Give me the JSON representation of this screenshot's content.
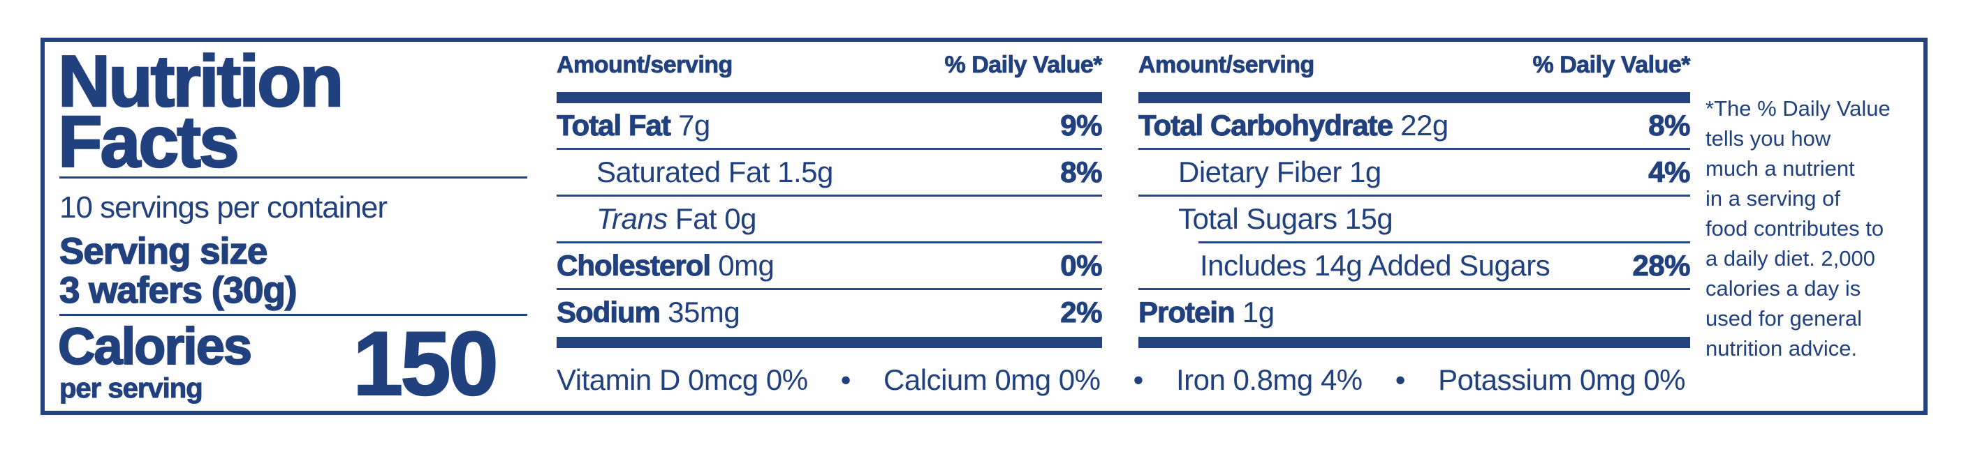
{
  "colors": {
    "navy_text": "#21407e",
    "navy_bar": "#24427e",
    "background": "#ffffff"
  },
  "title": {
    "line1": "Nutrition",
    "line2": "Facts"
  },
  "serving": {
    "servings_per_container": "10 servings per container",
    "serving_size_label": "Serving size",
    "serving_size_value": "3 wafers (30g)"
  },
  "calories": {
    "label": "Calories",
    "sublabel": "per serving",
    "value": "150"
  },
  "columns": [
    {
      "header": {
        "left": "Amount/serving",
        "right": "% Daily Value*"
      },
      "rows": [
        {
          "bold": "Total Fat",
          "italic": "",
          "text": " 7g",
          "dv": "9%"
        },
        {
          "bold": "",
          "italic": "",
          "text": "Saturated Fat 1.5g",
          "dv": "8%"
        },
        {
          "bold": "",
          "italic": "Trans",
          "text": " Fat 0g",
          "dv": ""
        },
        {
          "bold": "Cholesterol",
          "italic": "",
          "text": " 0mg",
          "dv": "0%"
        },
        {
          "bold": "Sodium",
          "italic": "",
          "text": " 35mg",
          "dv": "2%"
        }
      ]
    },
    {
      "header": {
        "left": "Amount/serving",
        "right": "% Daily Value*"
      },
      "rows": [
        {
          "bold": "Total Carbohydrate",
          "italic": "",
          "text": " 22g",
          "dv": "8%"
        },
        {
          "bold": "",
          "italic": "",
          "text": "Dietary Fiber 1g",
          "dv": "4%"
        },
        {
          "bold": "",
          "italic": "",
          "text": "Total Sugars 15g",
          "dv": ""
        },
        {
          "bold": "",
          "italic": "",
          "text": "Includes 14g Added Sugars",
          "dv": "28%"
        },
        {
          "bold": "Protein",
          "italic": "",
          "text": " 1g",
          "dv": ""
        }
      ]
    }
  ],
  "micronutrients": {
    "items": [
      "Vitamin D 0mcg 0%",
      "Calcium 0mg 0%",
      "Iron 0.8mg 4%",
      "Potassium 0mg 0%"
    ],
    "separator": "•"
  },
  "footnote": {
    "lines": [
      "*The % Daily Value",
      "tells you how",
      "much a nutrient",
      "in a serving of",
      "food contributes to",
      "a daily diet. 2,000",
      "calories a day is",
      "used for general",
      "nutrition advice."
    ]
  }
}
